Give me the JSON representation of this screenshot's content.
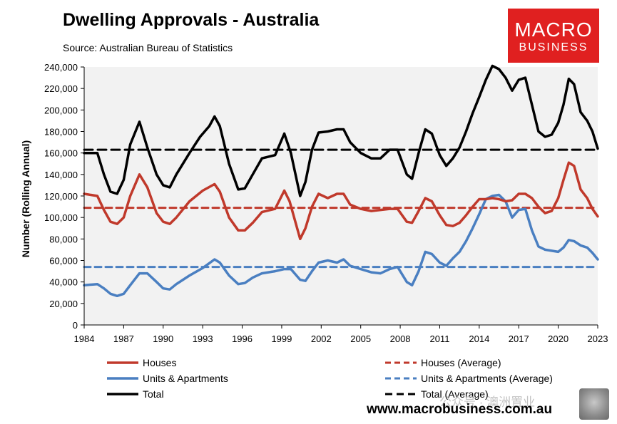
{
  "header": {
    "title": "Dwelling Approvals - Australia",
    "subtitle": "Source: Australian Bureau of Statistics"
  },
  "logo": {
    "line1": "MACRO",
    "line2": "BUSINESS"
  },
  "footer": {
    "website": "www.macrobusiness.com.au",
    "watermark": "公众号 · 澳洲置业"
  },
  "colors": {
    "houses": "#c0392b",
    "units": "#4a7fc1",
    "total": "#000000",
    "plot_bg": "#f2f2f2"
  },
  "chart_data": {
    "type": "line",
    "xlabel": "",
    "ylabel": "Number (Rolling Annual)",
    "xlim": [
      1984,
      2023
    ],
    "ylim": [
      0,
      240000
    ],
    "xticks": [
      "1984",
      "1987",
      "1990",
      "1993",
      "1996",
      "1999",
      "2002",
      "2005",
      "2008",
      "2011",
      "2014",
      "2017",
      "2020",
      "2023"
    ],
    "yticks": [
      "0",
      "20,000",
      "40,000",
      "60,000",
      "80,000",
      "100,000",
      "120,000",
      "140,000",
      "160,000",
      "180,000",
      "200,000",
      "220,000",
      "240,000"
    ],
    "grid": false,
    "legend_position": "bottom",
    "series": [
      {
        "name": "Total",
        "style": "solid",
        "color": "#000000",
        "points": [
          [
            1984,
            160000
          ],
          [
            1985,
            160000
          ],
          [
            1985.5,
            140000
          ],
          [
            1986,
            124000
          ],
          [
            1986.5,
            122000
          ],
          [
            1987,
            135000
          ],
          [
            1987.5,
            168000
          ],
          [
            1988.2,
            189000
          ],
          [
            1988.8,
            165000
          ],
          [
            1989.5,
            140000
          ],
          [
            1990,
            130000
          ],
          [
            1990.5,
            128000
          ],
          [
            1991,
            140000
          ],
          [
            1992,
            160000
          ],
          [
            1992.8,
            175000
          ],
          [
            1993.5,
            185000
          ],
          [
            1993.9,
            194000
          ],
          [
            1994.3,
            185000
          ],
          [
            1995,
            150000
          ],
          [
            1995.7,
            126000
          ],
          [
            1996.2,
            127000
          ],
          [
            1996.8,
            140000
          ],
          [
            1997.5,
            155000
          ],
          [
            1998.5,
            158000
          ],
          [
            1999.2,
            178000
          ],
          [
            1999.7,
            160000
          ],
          [
            2000.4,
            120000
          ],
          [
            2000.8,
            133000
          ],
          [
            2001.3,
            163000
          ],
          [
            2001.8,
            179000
          ],
          [
            2002.5,
            180000
          ],
          [
            2003.2,
            182000
          ],
          [
            2003.7,
            182000
          ],
          [
            2004.2,
            170000
          ],
          [
            2005,
            160000
          ],
          [
            2005.8,
            155000
          ],
          [
            2006.5,
            155000
          ],
          [
            2007.2,
            163000
          ],
          [
            2007.8,
            163000
          ],
          [
            2008.5,
            140000
          ],
          [
            2008.9,
            136000
          ],
          [
            2009.4,
            160000
          ],
          [
            2009.9,
            182000
          ],
          [
            2010.4,
            178000
          ],
          [
            2011,
            158000
          ],
          [
            2011.5,
            148000
          ],
          [
            2012,
            155000
          ],
          [
            2012.5,
            165000
          ],
          [
            2013,
            180000
          ],
          [
            2013.5,
            197000
          ],
          [
            2014,
            212000
          ],
          [
            2014.5,
            228000
          ],
          [
            2015,
            241000
          ],
          [
            2015.5,
            238000
          ],
          [
            2016,
            230000
          ],
          [
            2016.5,
            218000
          ],
          [
            2017,
            228000
          ],
          [
            2017.5,
            230000
          ],
          [
            2018,
            205000
          ],
          [
            2018.5,
            180000
          ],
          [
            2019,
            175000
          ],
          [
            2019.5,
            177000
          ],
          [
            2020,
            188000
          ],
          [
            2020.4,
            205000
          ],
          [
            2020.8,
            229000
          ],
          [
            2021.2,
            224000
          ],
          [
            2021.7,
            198000
          ],
          [
            2022.2,
            190000
          ],
          [
            2022.6,
            180000
          ],
          [
            2023,
            164000
          ]
        ]
      },
      {
        "name": "Houses",
        "style": "solid",
        "color": "#c0392b",
        "points": [
          [
            1984,
            122000
          ],
          [
            1985,
            120000
          ],
          [
            1985.5,
            107000
          ],
          [
            1986,
            96000
          ],
          [
            1986.5,
            94000
          ],
          [
            1987,
            100000
          ],
          [
            1987.5,
            120000
          ],
          [
            1988.2,
            140000
          ],
          [
            1988.8,
            128000
          ],
          [
            1989.5,
            104000
          ],
          [
            1990,
            96000
          ],
          [
            1990.5,
            94000
          ],
          [
            1991,
            100000
          ],
          [
            1992,
            115000
          ],
          [
            1993,
            125000
          ],
          [
            1993.9,
            131000
          ],
          [
            1994.3,
            124000
          ],
          [
            1995,
            100000
          ],
          [
            1995.7,
            88000
          ],
          [
            1996.2,
            88000
          ],
          [
            1996.8,
            95000
          ],
          [
            1997.5,
            105000
          ],
          [
            1998.5,
            108000
          ],
          [
            1999.2,
            125000
          ],
          [
            1999.6,
            115000
          ],
          [
            2000.4,
            80000
          ],
          [
            2000.8,
            90000
          ],
          [
            2001.3,
            110000
          ],
          [
            2001.8,
            122000
          ],
          [
            2002.5,
            118000
          ],
          [
            2003.2,
            122000
          ],
          [
            2003.7,
            122000
          ],
          [
            2004.2,
            112000
          ],
          [
            2005,
            108000
          ],
          [
            2005.8,
            106000
          ],
          [
            2006.5,
            107000
          ],
          [
            2007.2,
            108000
          ],
          [
            2007.8,
            108000
          ],
          [
            2008.5,
            96000
          ],
          [
            2008.9,
            95000
          ],
          [
            2009.4,
            106000
          ],
          [
            2009.9,
            118000
          ],
          [
            2010.4,
            115000
          ],
          [
            2011,
            102000
          ],
          [
            2011.5,
            93000
          ],
          [
            2012,
            92000
          ],
          [
            2012.5,
            95000
          ],
          [
            2013,
            102000
          ],
          [
            2013.5,
            110000
          ],
          [
            2014,
            117000
          ],
          [
            2014.5,
            117000
          ],
          [
            2015,
            118000
          ],
          [
            2015.5,
            117000
          ],
          [
            2016,
            115000
          ],
          [
            2016.5,
            116000
          ],
          [
            2017,
            122000
          ],
          [
            2017.5,
            122000
          ],
          [
            2018,
            118000
          ],
          [
            2018.5,
            110000
          ],
          [
            2019,
            104000
          ],
          [
            2019.5,
            106000
          ],
          [
            2020,
            118000
          ],
          [
            2020.4,
            135000
          ],
          [
            2020.8,
            151000
          ],
          [
            2021.2,
            148000
          ],
          [
            2021.7,
            126000
          ],
          [
            2022.2,
            118000
          ],
          [
            2022.6,
            108000
          ],
          [
            2023,
            101000
          ]
        ]
      },
      {
        "name": "Units & Apartments",
        "style": "solid",
        "color": "#4a7fc1",
        "points": [
          [
            1984,
            37000
          ],
          [
            1985,
            38000
          ],
          [
            1985.5,
            34000
          ],
          [
            1986,
            29000
          ],
          [
            1986.5,
            27000
          ],
          [
            1987,
            29000
          ],
          [
            1987.5,
            37000
          ],
          [
            1988.2,
            48000
          ],
          [
            1988.8,
            48000
          ],
          [
            1989.5,
            40000
          ],
          [
            1990,
            34000
          ],
          [
            1990.5,
            33000
          ],
          [
            1991,
            38000
          ],
          [
            1992,
            46000
          ],
          [
            1993,
            53000
          ],
          [
            1993.9,
            61000
          ],
          [
            1994.3,
            58000
          ],
          [
            1995,
            46000
          ],
          [
            1995.7,
            38000
          ],
          [
            1996.2,
            39000
          ],
          [
            1996.8,
            44000
          ],
          [
            1997.5,
            48000
          ],
          [
            1998.5,
            50000
          ],
          [
            1999.2,
            52000
          ],
          [
            1999.7,
            52000
          ],
          [
            2000.4,
            42000
          ],
          [
            2000.8,
            41000
          ],
          [
            2001.3,
            50000
          ],
          [
            2001.8,
            58000
          ],
          [
            2002.5,
            60000
          ],
          [
            2003.2,
            58000
          ],
          [
            2003.7,
            61000
          ],
          [
            2004.2,
            55000
          ],
          [
            2005,
            52000
          ],
          [
            2005.8,
            49000
          ],
          [
            2006.5,
            48000
          ],
          [
            2007.2,
            52000
          ],
          [
            2007.8,
            54000
          ],
          [
            2008.5,
            40000
          ],
          [
            2008.9,
            37000
          ],
          [
            2009.4,
            50000
          ],
          [
            2009.9,
            68000
          ],
          [
            2010.4,
            66000
          ],
          [
            2011,
            58000
          ],
          [
            2011.5,
            55000
          ],
          [
            2012,
            62000
          ],
          [
            2012.5,
            68000
          ],
          [
            2013,
            78000
          ],
          [
            2013.5,
            90000
          ],
          [
            2014,
            103000
          ],
          [
            2014.5,
            117000
          ],
          [
            2015,
            120000
          ],
          [
            2015.5,
            121000
          ],
          [
            2016,
            115000
          ],
          [
            2016.5,
            100000
          ],
          [
            2017,
            107000
          ],
          [
            2017.5,
            108000
          ],
          [
            2018,
            88000
          ],
          [
            2018.5,
            73000
          ],
          [
            2019,
            70000
          ],
          [
            2019.5,
            69000
          ],
          [
            2020,
            68000
          ],
          [
            2020.4,
            72000
          ],
          [
            2020.8,
            79000
          ],
          [
            2021.2,
            78000
          ],
          [
            2021.7,
            74000
          ],
          [
            2022.2,
            72000
          ],
          [
            2022.6,
            67000
          ],
          [
            2023,
            61000
          ]
        ]
      },
      {
        "name": "Total (Average)",
        "style": "dashed",
        "color": "#000000",
        "points": [
          [
            1984,
            163000
          ],
          [
            2023,
            163000
          ]
        ]
      },
      {
        "name": "Houses (Average)",
        "style": "dashed",
        "color": "#c0392b",
        "points": [
          [
            1984,
            109000
          ],
          [
            2023,
            109000
          ]
        ]
      },
      {
        "name": "Units & Apartments (Average)",
        "style": "dashed",
        "color": "#4a7fc1",
        "points": [
          [
            1984,
            54000
          ],
          [
            2023,
            54000
          ]
        ]
      }
    ]
  },
  "legend": {
    "houses": "Houses",
    "houses_avg": "Houses (Average)",
    "units": "Units & Apartments",
    "units_avg": "Units & Apartments (Average)",
    "total": "Total",
    "total_avg": "Total (Average)"
  }
}
